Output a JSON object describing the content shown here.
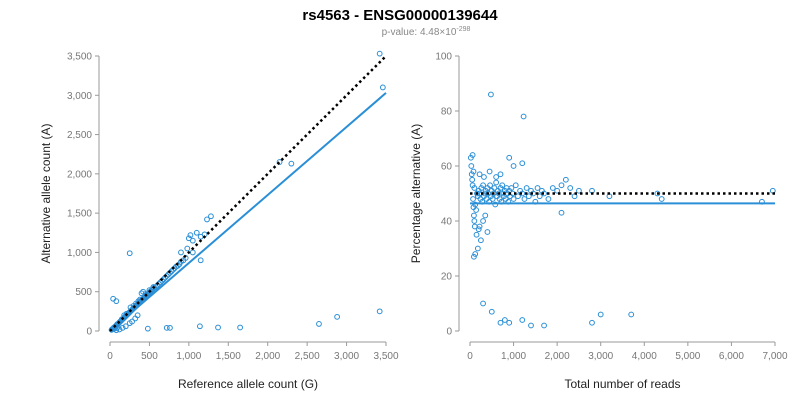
{
  "title": "rs4563 - ENSG00000139644",
  "subtitle": {
    "prefix": "p-value: 4.48×10",
    "exponent": "-298"
  },
  "colors": {
    "points": "#2a8fd6",
    "fit": "#2a8fd6",
    "reference": "#000000",
    "axis": "#9a9a9a"
  },
  "chart_data": [
    {
      "type": "scatter",
      "xlabel": "Reference allele count (G)",
      "ylabel": "Alternative allele count (A)",
      "xlim": [
        0,
        3500
      ],
      "ylim": [
        0,
        3500
      ],
      "xticks": [
        0,
        500,
        1000,
        1500,
        2000,
        2500,
        3000,
        3500
      ],
      "yticks": [
        0,
        500,
        1000,
        1500,
        2000,
        2500,
        3000,
        3500
      ],
      "xtick_labels": [
        "0",
        "500",
        "1,000",
        "1,500",
        "2,000",
        "2,500",
        "3,000",
        "3,500"
      ],
      "ytick_labels": [
        "0",
        "500",
        "1,000",
        "1,500",
        "2,000",
        "2,500",
        "3,000",
        "3,500"
      ],
      "reference_line": {
        "style": "dotted",
        "x": [
          0,
          3500
        ],
        "y": [
          0,
          3500
        ]
      },
      "fit_line": {
        "style": "solid",
        "x": [
          0,
          3500
        ],
        "y": [
          0,
          3030
        ]
      },
      "points": [
        [
          20,
          15
        ],
        [
          30,
          25
        ],
        [
          40,
          30
        ],
        [
          50,
          45
        ],
        [
          60,
          50
        ],
        [
          70,
          60
        ],
        [
          80,
          70
        ],
        [
          90,
          85
        ],
        [
          100,
          90
        ],
        [
          110,
          100
        ],
        [
          120,
          110
        ],
        [
          130,
          120
        ],
        [
          140,
          130
        ],
        [
          150,
          140
        ],
        [
          160,
          150
        ],
        [
          170,
          160
        ],
        [
          180,
          170
        ],
        [
          190,
          180
        ],
        [
          200,
          190
        ],
        [
          210,
          200
        ],
        [
          220,
          210
        ],
        [
          230,
          220
        ],
        [
          240,
          230
        ],
        [
          250,
          240
        ],
        [
          260,
          250
        ],
        [
          270,
          260
        ],
        [
          280,
          270
        ],
        [
          290,
          280
        ],
        [
          300,
          290
        ],
        [
          310,
          300
        ],
        [
          320,
          310
        ],
        [
          330,
          320
        ],
        [
          340,
          330
        ],
        [
          350,
          340
        ],
        [
          360,
          350
        ],
        [
          370,
          360
        ],
        [
          380,
          370
        ],
        [
          390,
          380
        ],
        [
          400,
          390
        ],
        [
          410,
          400
        ],
        [
          420,
          410
        ],
        [
          430,
          420
        ],
        [
          440,
          430
        ],
        [
          450,
          440
        ],
        [
          460,
          450
        ],
        [
          470,
          460
        ],
        [
          480,
          470
        ],
        [
          490,
          480
        ],
        [
          500,
          490
        ],
        [
          510,
          500
        ],
        [
          520,
          510
        ],
        [
          540,
          530
        ],
        [
          560,
          550
        ],
        [
          580,
          560
        ],
        [
          600,
          580
        ],
        [
          620,
          600
        ],
        [
          640,
          620
        ],
        [
          660,
          640
        ],
        [
          680,
          660
        ],
        [
          700,
          680
        ],
        [
          720,
          700
        ],
        [
          740,
          720
        ],
        [
          760,
          740
        ],
        [
          780,
          760
        ],
        [
          800,
          780
        ],
        [
          820,
          800
        ],
        [
          840,
          820
        ],
        [
          860,
          830
        ],
        [
          880,
          850
        ],
        [
          900,
          880
        ],
        [
          930,
          900
        ],
        [
          960,
          930
        ],
        [
          980,
          1050
        ],
        [
          1000,
          1180
        ],
        [
          1020,
          1220
        ],
        [
          1050,
          1150
        ],
        [
          1100,
          1250
        ],
        [
          1150,
          1200
        ],
        [
          1200,
          1230
        ],
        [
          1230,
          1420
        ],
        [
          1280,
          1460
        ],
        [
          1050,
          1000
        ],
        [
          900,
          1000
        ],
        [
          1150,
          900
        ],
        [
          250,
          990
        ],
        [
          400,
          480
        ],
        [
          420,
          500
        ],
        [
          450,
          470
        ],
        [
          500,
          520
        ],
        [
          550,
          560
        ],
        [
          80,
          10
        ],
        [
          120,
          20
        ],
        [
          160,
          40
        ],
        [
          200,
          60
        ],
        [
          250,
          100
        ],
        [
          280,
          120
        ],
        [
          320,
          160
        ],
        [
          350,
          200
        ],
        [
          60,
          30
        ],
        [
          90,
          40
        ],
        [
          40,
          410
        ],
        [
          80,
          380
        ],
        [
          150,
          150
        ],
        [
          180,
          200
        ],
        [
          210,
          220
        ],
        [
          260,
          300
        ],
        [
          300,
          320
        ],
        [
          330,
          350
        ],
        [
          360,
          380
        ],
        [
          380,
          400
        ],
        [
          2150,
          2150
        ],
        [
          2300,
          2130
        ],
        [
          3420,
          3530
        ],
        [
          3460,
          3100
        ],
        [
          480,
          30
        ],
        [
          720,
          40
        ],
        [
          760,
          40
        ],
        [
          1140,
          60
        ],
        [
          1370,
          45
        ],
        [
          1650,
          45
        ],
        [
          2650,
          90
        ],
        [
          2880,
          180
        ],
        [
          3420,
          250
        ]
      ]
    },
    {
      "type": "scatter",
      "xlabel": "Total number of reads",
      "ylabel": "Percentage alternative (A)",
      "xlim": [
        0,
        7000
      ],
      "ylim": [
        0,
        100
      ],
      "xticks": [
        0,
        1000,
        2000,
        3000,
        4000,
        5000,
        6000,
        7000
      ],
      "yticks": [
        0,
        20,
        40,
        60,
        80,
        100
      ],
      "xtick_labels": [
        "0",
        "1,000",
        "2,000",
        "3,000",
        "4,000",
        "5,000",
        "6,000",
        "7,000"
      ],
      "ytick_labels": [
        "0",
        "20",
        "40",
        "60",
        "80",
        "100"
      ],
      "reference_line": {
        "style": "dotted",
        "x": [
          0,
          7000
        ],
        "y": [
          50,
          50
        ]
      },
      "fit_line": {
        "style": "solid",
        "x": [
          0,
          7000
        ],
        "y": [
          46.4,
          46.4
        ]
      },
      "points": [
        [
          20,
          63
        ],
        [
          30,
          60
        ],
        [
          40,
          57
        ],
        [
          50,
          55
        ],
        [
          60,
          53
        ],
        [
          70,
          48
        ],
        [
          80,
          45
        ],
        [
          90,
          42
        ],
        [
          100,
          40
        ],
        [
          110,
          38
        ],
        [
          60,
          64
        ],
        [
          80,
          58
        ],
        [
          100,
          52
        ],
        [
          120,
          46
        ],
        [
          140,
          44
        ],
        [
          160,
          50
        ],
        [
          180,
          49
        ],
        [
          200,
          51
        ],
        [
          220,
          50
        ],
        [
          240,
          48
        ],
        [
          260,
          52
        ],
        [
          280,
          47
        ],
        [
          300,
          53
        ],
        [
          320,
          49
        ],
        [
          340,
          50
        ],
        [
          360,
          51
        ],
        [
          380,
          48
        ],
        [
          400,
          52
        ],
        [
          420,
          50
        ],
        [
          440,
          47
        ],
        [
          460,
          53
        ],
        [
          480,
          49
        ],
        [
          500,
          51
        ],
        [
          520,
          48
        ],
        [
          540,
          50
        ],
        [
          560,
          52
        ],
        [
          580,
          46
        ],
        [
          600,
          54
        ],
        [
          620,
          49
        ],
        [
          640,
          51
        ],
        [
          660,
          50
        ],
        [
          680,
          48
        ],
        [
          700,
          52
        ],
        [
          720,
          47
        ],
        [
          740,
          53
        ],
        [
          760,
          50
        ],
        [
          780,
          49
        ],
        [
          800,
          51
        ],
        [
          820,
          48
        ],
        [
          840,
          52
        ],
        [
          860,
          50
        ],
        [
          880,
          47
        ],
        [
          900,
          51
        ],
        [
          920,
          49
        ],
        [
          950,
          52
        ],
        [
          980,
          50
        ],
        [
          1000,
          48
        ],
        [
          1050,
          53
        ],
        [
          1100,
          49
        ],
        [
          1150,
          51
        ],
        [
          1200,
          50
        ],
        [
          1250,
          48
        ],
        [
          1300,
          52
        ],
        [
          1350,
          49
        ],
        [
          1400,
          51
        ],
        [
          1450,
          50
        ],
        [
          1500,
          47
        ],
        [
          1550,
          52
        ],
        [
          1600,
          49
        ],
        [
          1650,
          51
        ],
        [
          1700,
          50
        ],
        [
          1800,
          48
        ],
        [
          1900,
          52
        ],
        [
          2000,
          51
        ],
        [
          2100,
          53
        ],
        [
          2200,
          55
        ],
        [
          2300,
          52
        ],
        [
          2100,
          43
        ],
        [
          2400,
          49
        ],
        [
          2500,
          51
        ],
        [
          2800,
          51
        ],
        [
          3200,
          49
        ],
        [
          4300,
          50
        ],
        [
          4400,
          48
        ],
        [
          6700,
          47
        ],
        [
          6950,
          51
        ],
        [
          150,
          35
        ],
        [
          200,
          37
        ],
        [
          250,
          33
        ],
        [
          300,
          40
        ],
        [
          350,
          42
        ],
        [
          400,
          36
        ],
        [
          180,
          30
        ],
        [
          220,
          38
        ],
        [
          120,
          28
        ],
        [
          90,
          27
        ],
        [
          220,
          57
        ],
        [
          320,
          56
        ],
        [
          450,
          58
        ],
        [
          600,
          56
        ],
        [
          700,
          57
        ],
        [
          900,
          63
        ],
        [
          1000,
          60
        ],
        [
          1200,
          61
        ],
        [
          480,
          86
        ],
        [
          1230,
          78
        ],
        [
          300,
          10
        ],
        [
          500,
          7
        ],
        [
          700,
          3
        ],
        [
          800,
          4
        ],
        [
          900,
          3
        ],
        [
          1200,
          4
        ],
        [
          1400,
          2
        ],
        [
          1700,
          2
        ],
        [
          2800,
          3
        ],
        [
          3000,
          6
        ],
        [
          3700,
          6
        ]
      ]
    }
  ]
}
